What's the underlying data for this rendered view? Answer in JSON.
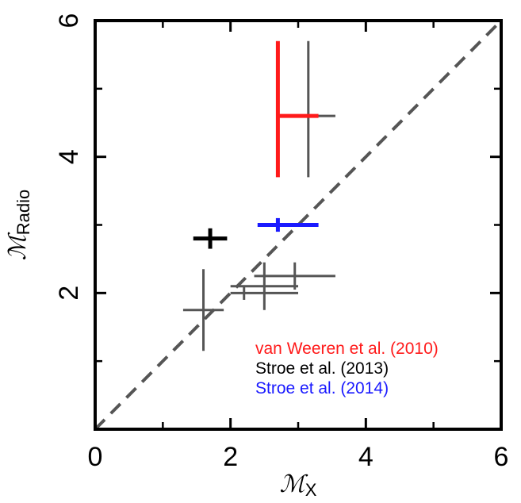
{
  "chart_data": {
    "type": "scatter",
    "xlabel": "ℳX",
    "ylabel": "ℳRadio",
    "xlim": [
      0,
      6
    ],
    "ylim": [
      0,
      6
    ],
    "x_ticks": [
      0,
      2,
      4,
      6
    ],
    "x_tick_labels": [
      "0",
      "2",
      "4",
      "6"
    ],
    "y_ticks": [
      2,
      4,
      6
    ],
    "y_tick_labels": [
      "2",
      "4",
      "6"
    ],
    "minor_ticks": [
      1,
      3,
      5
    ],
    "grid": false,
    "legend_position": "bottom-right",
    "reference_line": {
      "type": "dashed",
      "from": [
        0,
        0
      ],
      "to": [
        6,
        6
      ],
      "color": "#555555"
    },
    "series": [
      {
        "name": "van Weeren et al. (2010)",
        "color": "#ff1a1a",
        "points": [
          {
            "x": 2.7,
            "y": 4.6,
            "xerr": [
              0.0,
              0.6
            ],
            "yerr": [
              0.9,
              1.1
            ]
          }
        ]
      },
      {
        "name": "Stroe et al. (2013)",
        "color": "#000000",
        "points": [
          {
            "x": 1.7,
            "y": 2.8,
            "xerr": [
              0.25,
              0.25
            ],
            "yerr": [
              0.15,
              0.15
            ]
          }
        ]
      },
      {
        "name": "Stroe et al. (2014)",
        "color": "#1a1aff",
        "points": [
          {
            "x": 2.7,
            "y": 3.0,
            "xerr": [
              0.3,
              0.6
            ],
            "yerr": [
              0.1,
              0.1
            ]
          }
        ]
      },
      {
        "name": "",
        "color": "#555555",
        "points": [
          {
            "x": 3.15,
            "y": 4.6,
            "xerr": [
              0.45,
              0.4
            ],
            "yerr": [
              0.9,
              1.1
            ]
          },
          {
            "x": 1.6,
            "y": 1.75,
            "xerr": [
              0.3,
              0.3
            ],
            "yerr": [
              0.6,
              0.6
            ]
          },
          {
            "x": 2.2,
            "y": 2.0,
            "xerr": [
              0.2,
              0.8
            ],
            "yerr": [
              0.1,
              0.1
            ]
          },
          {
            "x": 2.5,
            "y": 2.1,
            "xerr": [
              0.5,
              0.5
            ],
            "yerr": [
              0.35,
              0.35
            ]
          },
          {
            "x": 2.95,
            "y": 2.25,
            "xerr": [
              0.6,
              0.6
            ],
            "yerr": [
              0.2,
              0.2
            ]
          }
        ]
      }
    ]
  }
}
